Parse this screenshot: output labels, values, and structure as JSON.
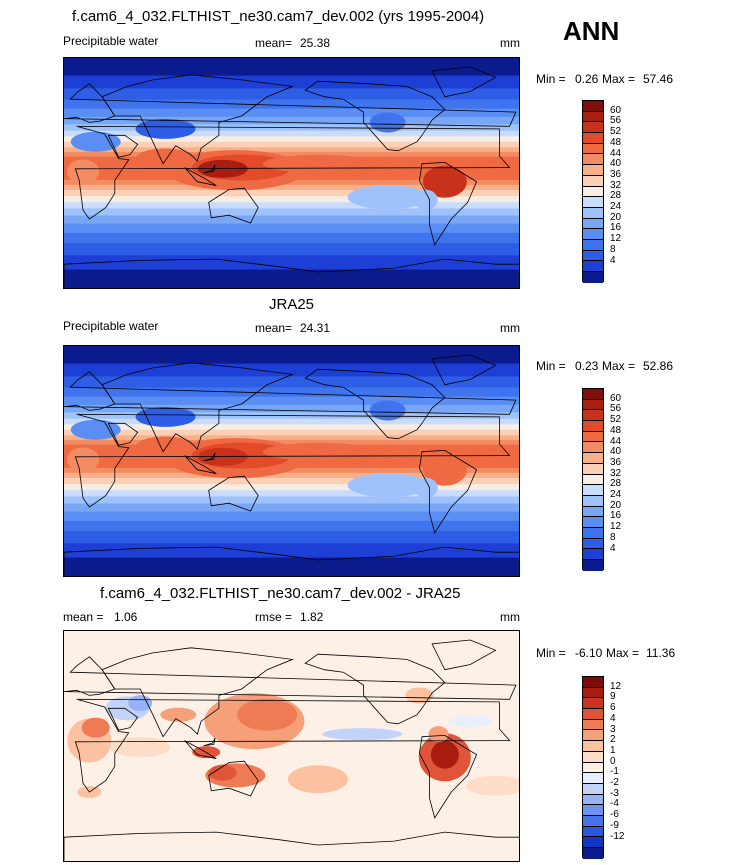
{
  "header": {
    "title": "f.cam6_4_032.FLTHIST_ne30.cam7_dev.002 (yrs 1995-2004)",
    "season": "ANN"
  },
  "colors": {
    "precip_scale": [
      "#0b1a8c",
      "#1e3fd6",
      "#2f5ee6",
      "#3f74ee",
      "#5a8ef2",
      "#7aa6f6",
      "#a0c2fa",
      "#cadcfc",
      "#f7ede3",
      "#fbd0b4",
      "#f7b08a",
      "#f48c63",
      "#ef6a43",
      "#e24a2a",
      "#c8321a",
      "#a81e10",
      "#7f0f08"
    ],
    "diff_scale": [
      "#0a1a8a",
      "#1434c9",
      "#2d55e0",
      "#4a73ea",
      "#6e93f0",
      "#96b3f5",
      "#c2d3fa",
      "#e7eefc",
      "#fdf0e6",
      "#fddcc8",
      "#fbc1a0",
      "#f6a079",
      "#ef7b54",
      "#e0553a",
      "#c8341f",
      "#a81c0f",
      "#7c0a05"
    ]
  },
  "panels": [
    {
      "panel_title": "",
      "left_label": "Precipitable water",
      "mean_label": "mean=",
      "mean_value": "25.38",
      "rmse_label": "",
      "rmse_value": "",
      "units": "mm",
      "min_label": "Min =",
      "min_value": "0.26",
      "max_label": "Max =",
      "max_value": "57.46",
      "colorbar_ticks": [
        "60",
        "56",
        "52",
        "48",
        "44",
        "40",
        "36",
        "32",
        "28",
        "24",
        "20",
        "16",
        "12",
        "8",
        "4"
      ]
    },
    {
      "panel_title": "JRA25",
      "left_label": "Precipitable water",
      "mean_label": "mean=",
      "mean_value": "24.31",
      "rmse_label": "",
      "rmse_value": "",
      "units": "mm",
      "min_label": "Min =",
      "min_value": "0.23",
      "max_label": "Max =",
      "max_value": "52.86",
      "colorbar_ticks": [
        "60",
        "56",
        "52",
        "48",
        "44",
        "40",
        "36",
        "32",
        "28",
        "24",
        "20",
        "16",
        "12",
        "8",
        "4"
      ]
    },
    {
      "panel_title": "f.cam6_4_032.FLTHIST_ne30.cam7_dev.002 - JRA25",
      "left_label": "mean =",
      "left_value": "1.06",
      "mean_label": "",
      "mean_value": "",
      "rmse_label": "rmse =",
      "rmse_value": "1.82",
      "units": "mm",
      "min_label": "Min =",
      "min_value": "-6.10",
      "max_label": "Max =",
      "max_value": "11.36",
      "colorbar_ticks": [
        "12",
        "9",
        "6",
        "4",
        "3",
        "2",
        "1",
        "0",
        "-1",
        "-2",
        "-3",
        "-4",
        "-6",
        "-9",
        "-12"
      ]
    }
  ],
  "chart_data": [
    {
      "type": "heatmap",
      "title": "f.cam6_4_032.FLTHIST_ne30.cam7_dev.002 (yrs 1995-2004)",
      "variable": "Precipitable water",
      "units": "mm",
      "mean": 25.38,
      "min": 0.26,
      "max": 57.46,
      "contour_levels": [
        4,
        8,
        12,
        16,
        20,
        24,
        28,
        32,
        36,
        40,
        44,
        48,
        52,
        56,
        60
      ]
    },
    {
      "type": "heatmap",
      "title": "JRA25",
      "variable": "Precipitable water",
      "units": "mm",
      "mean": 24.31,
      "min": 0.23,
      "max": 52.86,
      "contour_levels": [
        4,
        8,
        12,
        16,
        20,
        24,
        28,
        32,
        36,
        40,
        44,
        48,
        52,
        56,
        60
      ]
    },
    {
      "type": "heatmap",
      "title": "f.cam6_4_032.FLTHIST_ne30.cam7_dev.002 - JRA25",
      "units": "mm",
      "mean": 1.06,
      "rmse": 1.82,
      "min": -6.1,
      "max": 11.36,
      "contour_levels": [
        -12,
        -9,
        -6,
        -4,
        -3,
        -2,
        -1,
        0,
        1,
        2,
        3,
        4,
        6,
        9,
        12
      ]
    }
  ]
}
